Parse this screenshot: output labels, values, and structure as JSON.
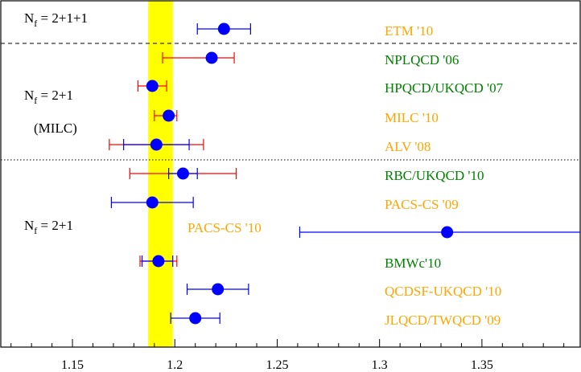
{
  "chart_data": {
    "type": "scatter",
    "xlim": [
      1.115,
      1.398
    ],
    "x_ticks": [
      "1.15",
      "1.2",
      "1.25",
      "1.3",
      "1.35"
    ],
    "x_tick_values": [
      1.15,
      1.2,
      1.25,
      1.3,
      1.35
    ],
    "band": {
      "from": 1.187,
      "to": 1.199,
      "color": "#ffff00"
    },
    "group_labels": [
      {
        "main": "N",
        "sub": "f",
        "rest": " = 2+1+1"
      },
      {
        "main": "N",
        "sub": "f",
        "rest": " = 2+1"
      },
      {
        "main": "(MILC)",
        "sub": "",
        "rest": ""
      },
      {
        "main": "N",
        "sub": "f",
        "rest": " = 2+1"
      }
    ],
    "series": [
      {
        "label": "ETM '10",
        "value": 1.224,
        "err_blue": [
          1.211,
          1.237
        ],
        "err_red": null,
        "label_color": "#ffa500"
      },
      {
        "label": "NPLQCD '06",
        "value": 1.218,
        "err_blue": null,
        "err_red": [
          1.194,
          1.229
        ],
        "label_color": "#008000"
      },
      {
        "label": "HPQCD/UKQCD '07",
        "value": 1.189,
        "err_blue": null,
        "err_red": [
          1.182,
          1.196
        ],
        "label_color": "#008000"
      },
      {
        "label": "MILC '10",
        "value": 1.197,
        "err_blue": null,
        "err_red": [
          1.19,
          1.201
        ],
        "label_color": "#ffa500"
      },
      {
        "label": "ALV '08",
        "value": 1.191,
        "err_blue": [
          1.175,
          1.207
        ],
        "err_red": [
          1.168,
          1.214
        ],
        "label_color": "#ffa500"
      },
      {
        "label": "RBC/UKQCD '10",
        "value": 1.204,
        "err_blue": [
          1.197,
          1.211
        ],
        "err_red": [
          1.178,
          1.23
        ],
        "label_color": "#008000"
      },
      {
        "label": "PACS-CS '09",
        "value": 1.189,
        "err_blue": [
          1.169,
          1.209
        ],
        "err_red": null,
        "label_color": "#ffa500"
      },
      {
        "label": "PACS-CS '10",
        "value": 1.333,
        "err_blue": [
          1.261,
          1.4
        ],
        "err_red": null,
        "label_color": "#ffa500"
      },
      {
        "label": "BMWc'10",
        "value": 1.192,
        "err_blue": [
          1.184,
          1.199
        ],
        "err_red": [
          1.183,
          1.201
        ],
        "label_color": "#008000"
      },
      {
        "label": "QCDSF-UKQCD '10",
        "value": 1.221,
        "err_blue": [
          1.206,
          1.236
        ],
        "err_red": null,
        "label_color": "#ffa500"
      },
      {
        "label": "JLQCD/TWQCD '09",
        "value": 1.21,
        "err_blue": [
          1.198,
          1.222
        ],
        "err_red": null,
        "label_color": "#ffa500"
      }
    ],
    "colors": {
      "point": "#0000ff",
      "err_blue": "#0000ff",
      "err_red": "#ff0000"
    }
  }
}
